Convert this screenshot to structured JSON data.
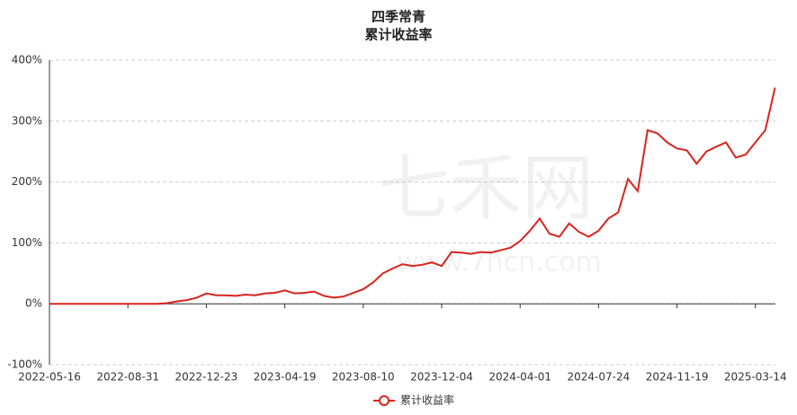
{
  "chart_data": {
    "type": "line",
    "title": "四季常青",
    "subtitle": "累计收益率",
    "watermark": {
      "text": "七禾网",
      "url": "www.7hcn.com"
    },
    "categories": [
      "2022-05-16",
      null,
      null,
      null,
      null,
      null,
      null,
      null,
      "2022-08-31",
      null,
      null,
      null,
      null,
      null,
      null,
      null,
      "2022-12-23",
      null,
      null,
      null,
      null,
      null,
      null,
      null,
      "2023-04-19",
      null,
      null,
      null,
      null,
      null,
      null,
      null,
      "2023-08-10",
      null,
      null,
      null,
      null,
      null,
      null,
      null,
      "2023-12-04",
      null,
      null,
      null,
      null,
      null,
      null,
      null,
      "2024-04-01",
      null,
      null,
      null,
      null,
      null,
      null,
      null,
      "2024-07-24",
      null,
      null,
      null,
      null,
      null,
      null,
      null,
      "2024-11-19",
      null,
      null,
      null,
      null,
      null,
      null,
      null,
      "2025-03-14",
      null,
      null
    ],
    "series": [
      {
        "name": "累计收益率",
        "color": "#d9231d",
        "values": [
          0,
          0,
          0,
          0,
          0,
          0,
          0,
          0,
          0,
          0,
          0,
          0,
          1,
          4,
          6,
          10,
          17,
          14,
          14,
          13,
          15,
          14,
          17,
          18,
          22,
          17,
          18,
          20,
          13,
          10,
          12,
          18,
          24,
          35,
          50,
          58,
          65,
          62,
          64,
          68,
          62,
          85,
          84,
          82,
          85,
          84,
          88,
          92,
          103,
          120,
          140,
          115,
          110,
          132,
          118,
          110,
          120,
          140,
          150,
          205,
          185,
          285,
          280,
          265,
          255,
          252,
          230,
          250,
          258,
          265,
          240,
          245,
          265,
          285,
          355
        ]
      }
    ],
    "ylim": [
      -100,
      400
    ],
    "yticks": [
      {
        "value": -100,
        "label": "-100%"
      },
      {
        "value": 0,
        "label": "0%"
      },
      {
        "value": 100,
        "label": "100%"
      },
      {
        "value": 200,
        "label": "200%"
      },
      {
        "value": 300,
        "label": "300%"
      },
      {
        "value": 400,
        "label": "400%"
      }
    ],
    "grid": true
  }
}
